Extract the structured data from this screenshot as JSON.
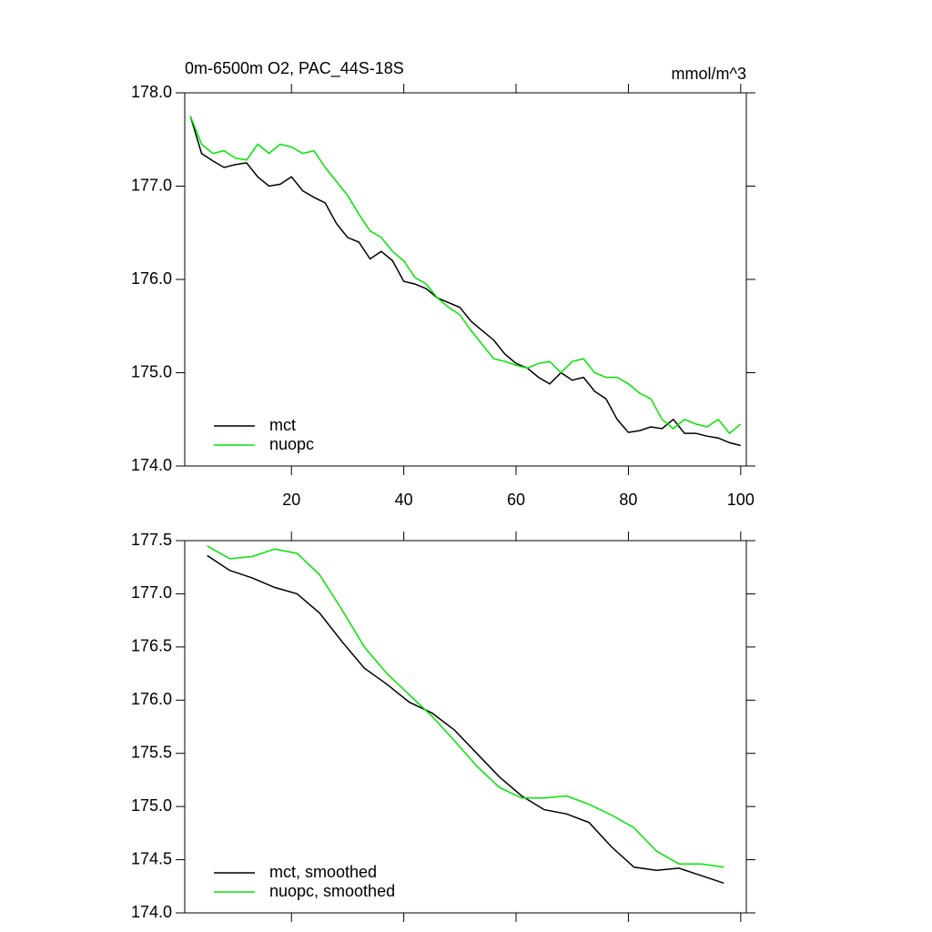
{
  "chart_data": [
    {
      "type": "line",
      "title": "0m-6500m O2, PAC_44S-18S",
      "units": "mmol/m^3",
      "x": [
        2,
        4,
        6,
        8,
        10,
        12,
        14,
        16,
        18,
        20,
        22,
        24,
        26,
        28,
        30,
        32,
        34,
        36,
        38,
        40,
        42,
        44,
        46,
        48,
        50,
        52,
        54,
        56,
        58,
        60,
        62,
        64,
        66,
        68,
        70,
        72,
        74,
        76,
        78,
        80,
        82,
        84,
        86,
        88,
        90,
        92,
        94,
        96,
        98,
        100
      ],
      "xlim": [
        1,
        101
      ],
      "xticks": [
        20,
        40,
        60,
        80,
        100
      ],
      "xtick_labels": true,
      "ylim": [
        174,
        178
      ],
      "yticks": [
        {
          "value": 174,
          "label": "174.0"
        },
        {
          "value": 175,
          "label": "175.0"
        },
        {
          "value": 176,
          "label": "176.0"
        },
        {
          "value": 177,
          "label": "177.0"
        },
        {
          "value": 178,
          "label": "178.0"
        }
      ],
      "legend": "lower left",
      "series": [
        {
          "name": "mct",
          "color": "#000000",
          "values": [
            177.75,
            177.35,
            177.27,
            177.2,
            177.23,
            177.25,
            177.1,
            177.0,
            177.02,
            177.1,
            176.95,
            176.88,
            176.82,
            176.6,
            176.45,
            176.4,
            176.22,
            176.3,
            176.2,
            175.98,
            175.95,
            175.9,
            175.8,
            175.75,
            175.7,
            175.55,
            175.45,
            175.35,
            175.2,
            175.1,
            175.05,
            174.95,
            174.88,
            175.0,
            174.92,
            174.95,
            174.8,
            174.72,
            174.5,
            174.36,
            174.38,
            174.42,
            174.4,
            174.5,
            174.35,
            174.35,
            174.32,
            174.3,
            174.25,
            174.22
          ]
        },
        {
          "name": "nuopc",
          "color": "#00e600",
          "values": [
            177.75,
            177.45,
            177.35,
            177.38,
            177.3,
            177.28,
            177.45,
            177.35,
            177.45,
            177.42,
            177.35,
            177.38,
            177.2,
            177.05,
            176.9,
            176.7,
            176.52,
            176.45,
            176.3,
            176.2,
            176.02,
            175.95,
            175.8,
            175.7,
            175.62,
            175.45,
            175.3,
            175.15,
            175.12,
            175.08,
            175.05,
            175.1,
            175.12,
            175.0,
            175.12,
            175.15,
            175.0,
            174.95,
            174.95,
            174.88,
            174.78,
            174.72,
            174.5,
            174.4,
            174.5,
            174.45,
            174.42,
            174.5,
            174.35,
            174.45
          ]
        }
      ]
    },
    {
      "type": "line",
      "x": [
        5,
        9,
        13,
        17,
        21,
        25,
        29,
        33,
        37,
        41,
        45,
        49,
        53,
        57,
        61,
        65,
        69,
        73,
        77,
        81,
        85,
        89,
        93,
        97
      ],
      "xlim": [
        1,
        101
      ],
      "xticks": [
        20,
        40,
        60,
        80,
        100
      ],
      "xtick_labels": false,
      "ylim": [
        174,
        177.5
      ],
      "yticks": [
        {
          "value": 174,
          "label": "174.0"
        },
        174.5,
        {
          "value": 175,
          "label": "175.0"
        },
        175.5,
        {
          "value": 176,
          "label": "176.0"
        },
        176.5,
        {
          "value": 177,
          "label": "177.0"
        },
        177.5
      ],
      "legend": "lower left",
      "series": [
        {
          "name": "mct, smoothed",
          "color": "#000000",
          "values": [
            177.36,
            177.22,
            177.15,
            177.06,
            177.0,
            176.82,
            176.55,
            176.3,
            176.15,
            175.98,
            175.88,
            175.72,
            175.5,
            175.28,
            175.1,
            174.97,
            174.93,
            174.85,
            174.62,
            174.43,
            174.4,
            174.42,
            174.35,
            174.28
          ]
        },
        {
          "name": "nuopc, smoothed",
          "color": "#00e600",
          "values": [
            177.45,
            177.33,
            177.35,
            177.42,
            177.38,
            177.18,
            176.85,
            176.5,
            176.25,
            176.05,
            175.85,
            175.62,
            175.38,
            175.18,
            175.08,
            175.08,
            175.1,
            175.02,
            174.92,
            174.8,
            174.58,
            174.46,
            174.46,
            174.43
          ]
        }
      ]
    }
  ]
}
